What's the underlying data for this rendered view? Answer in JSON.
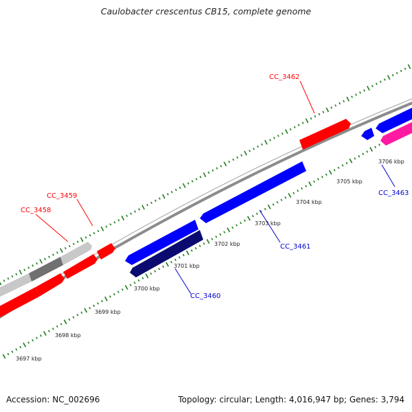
{
  "title": "Caulobacter crescentus CB15, complete genome",
  "footer": {
    "accession_text": "Accession: NC_002696",
    "summary_text": "Topology: circular; Length: 4,016,947 bp; Genes: 3,794"
  },
  "colors": {
    "forward_gene": "#ff0000",
    "reverse_gene": "#0000ff",
    "reverse_gene_dark": "#0a0a70",
    "magenta_gene": "#ff1aa3",
    "pseudo_light": "#c8c8c8",
    "pseudo_dark": "#707070",
    "backbone": "#8c8c8c",
    "ticks": "#1f7a1f",
    "label_red": "#ff0000",
    "label_blue": "#0000cc"
  },
  "scale": {
    "unit": "kbp",
    "tick_labels": [
      "3697 kbp",
      "3698 kbp",
      "3699 kbp",
      "3700 kbp",
      "3701 kbp",
      "3702 kbp",
      "3703 kbp",
      "3704 kbp",
      "3705 kbp",
      "3706 kbp"
    ]
  },
  "genes": [
    {
      "id": "CC_3458",
      "strand": "+",
      "label": "CC_3458",
      "labelled": true
    },
    {
      "id": "CC_3459",
      "strand": "+",
      "label": "CC_3459",
      "labelled": true
    },
    {
      "id": "CC_3460",
      "strand": "-",
      "label": "CC_3460",
      "labelled": true
    },
    {
      "id": "CC_3461",
      "strand": "-",
      "label": "CC_3461",
      "labelled": true
    },
    {
      "id": "CC_3462",
      "strand": "+",
      "label": "CC_3462",
      "labelled": true
    },
    {
      "id": "CC_3463",
      "strand": "-",
      "label": "CC_3463",
      "labelled": true
    }
  ]
}
